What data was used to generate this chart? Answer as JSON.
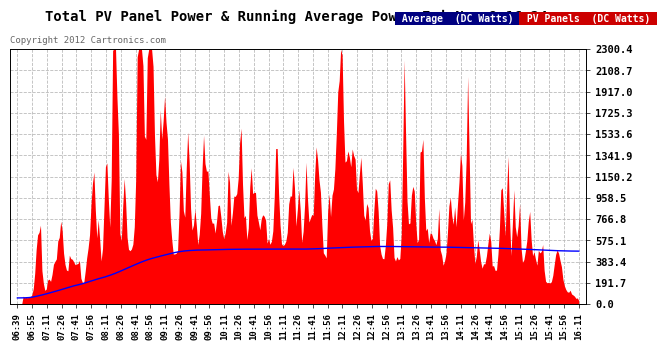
{
  "title": "Total PV Panel Power & Running Average Power Fri Nov 9 16:24",
  "copyright": "Copyright 2012 Cartronics.com",
  "yticks": [
    0.0,
    191.7,
    383.4,
    575.1,
    766.8,
    958.5,
    1150.2,
    1341.9,
    1533.6,
    1725.3,
    1917.0,
    2108.7,
    2300.4
  ],
  "ymax": 2300.4,
  "ymin": 0.0,
  "pv_color": "#FF0000",
  "avg_color": "#0000FF",
  "bg_color": "#FFFFFF",
  "grid_color": "#BBBBBB",
  "legend_avg_bg": "#000080",
  "legend_pv_bg": "#CC0000",
  "xtick_labels": [
    "06:39",
    "06:55",
    "07:11",
    "07:26",
    "07:41",
    "07:56",
    "08:11",
    "08:26",
    "08:41",
    "08:56",
    "09:11",
    "09:26",
    "09:41",
    "09:56",
    "10:11",
    "10:26",
    "10:41",
    "10:56",
    "11:11",
    "11:26",
    "11:41",
    "11:56",
    "12:11",
    "12:26",
    "12:41",
    "12:56",
    "13:11",
    "13:26",
    "13:41",
    "13:56",
    "14:11",
    "14:26",
    "14:41",
    "14:56",
    "15:11",
    "15:26",
    "15:41",
    "15:56",
    "16:11"
  ]
}
